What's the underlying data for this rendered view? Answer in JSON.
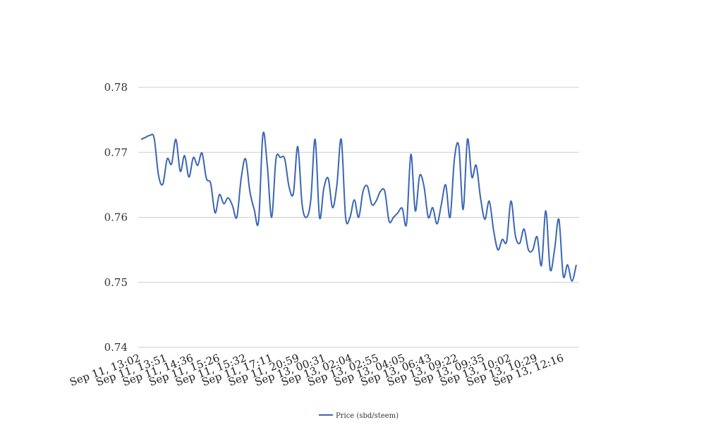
{
  "chart_data": {
    "type": "line",
    "title": "",
    "xlabel": "",
    "ylabel": "",
    "ylim": [
      0.74,
      0.78
    ],
    "yticks": [
      "0.74",
      "0.75",
      "0.76",
      "0.77",
      "0.78"
    ],
    "xtick_labels": [
      "Sep 11, 13:02",
      "Sep 11, 13:51",
      "Sep 11, 14:36",
      "Sep 11, 15:26",
      "Sep 11, 15:32",
      "Sep 11, 17:11",
      "Sep 11, 20:59",
      "Sep 13, 00:31",
      "Sep 13, 02:04",
      "Sep 13, 02:55",
      "Sep 13, 04:05",
      "Sep 13, 06:43",
      "Sep 13, 09:22",
      "Sep 13, 09:35",
      "Sep 13, 10:02",
      "Sep 13, 10:29",
      "Sep 13, 12:16"
    ],
    "grid": true,
    "legend_position": "bottom",
    "series": [
      {
        "name": "Price (sbd/steem)",
        "color": "#3a66b5",
        "values": [
          0.772,
          0.7723,
          0.7726,
          0.7722,
          0.7665,
          0.7651,
          0.769,
          0.7682,
          0.772,
          0.7671,
          0.7695,
          0.7662,
          0.7692,
          0.768,
          0.7699,
          0.766,
          0.7652,
          0.7607,
          0.7635,
          0.7621,
          0.763,
          0.7618,
          0.76,
          0.766,
          0.769,
          0.764,
          0.7612,
          0.7594,
          0.7728,
          0.768,
          0.76,
          0.769,
          0.7692,
          0.769,
          0.7647,
          0.7637,
          0.7709,
          0.762,
          0.76,
          0.7627,
          0.772,
          0.76,
          0.7645,
          0.766,
          0.7615,
          0.765,
          0.772,
          0.76,
          0.76,
          0.7627,
          0.76,
          0.764,
          0.7648,
          0.762,
          0.7625,
          0.764,
          0.764,
          0.7594,
          0.76,
          0.7607,
          0.7614,
          0.759,
          0.7697,
          0.761,
          0.7664,
          0.7648,
          0.76,
          0.7615,
          0.759,
          0.762,
          0.765,
          0.76,
          0.769,
          0.771,
          0.7612,
          0.772,
          0.7662,
          0.768,
          0.763,
          0.7597,
          0.7625,
          0.758,
          0.755,
          0.7566,
          0.7563,
          0.7625,
          0.7572,
          0.756,
          0.7582,
          0.755,
          0.755,
          0.757,
          0.7526,
          0.761,
          0.752,
          0.755,
          0.7597,
          0.751,
          0.7527,
          0.7502,
          0.7527
        ]
      }
    ]
  }
}
